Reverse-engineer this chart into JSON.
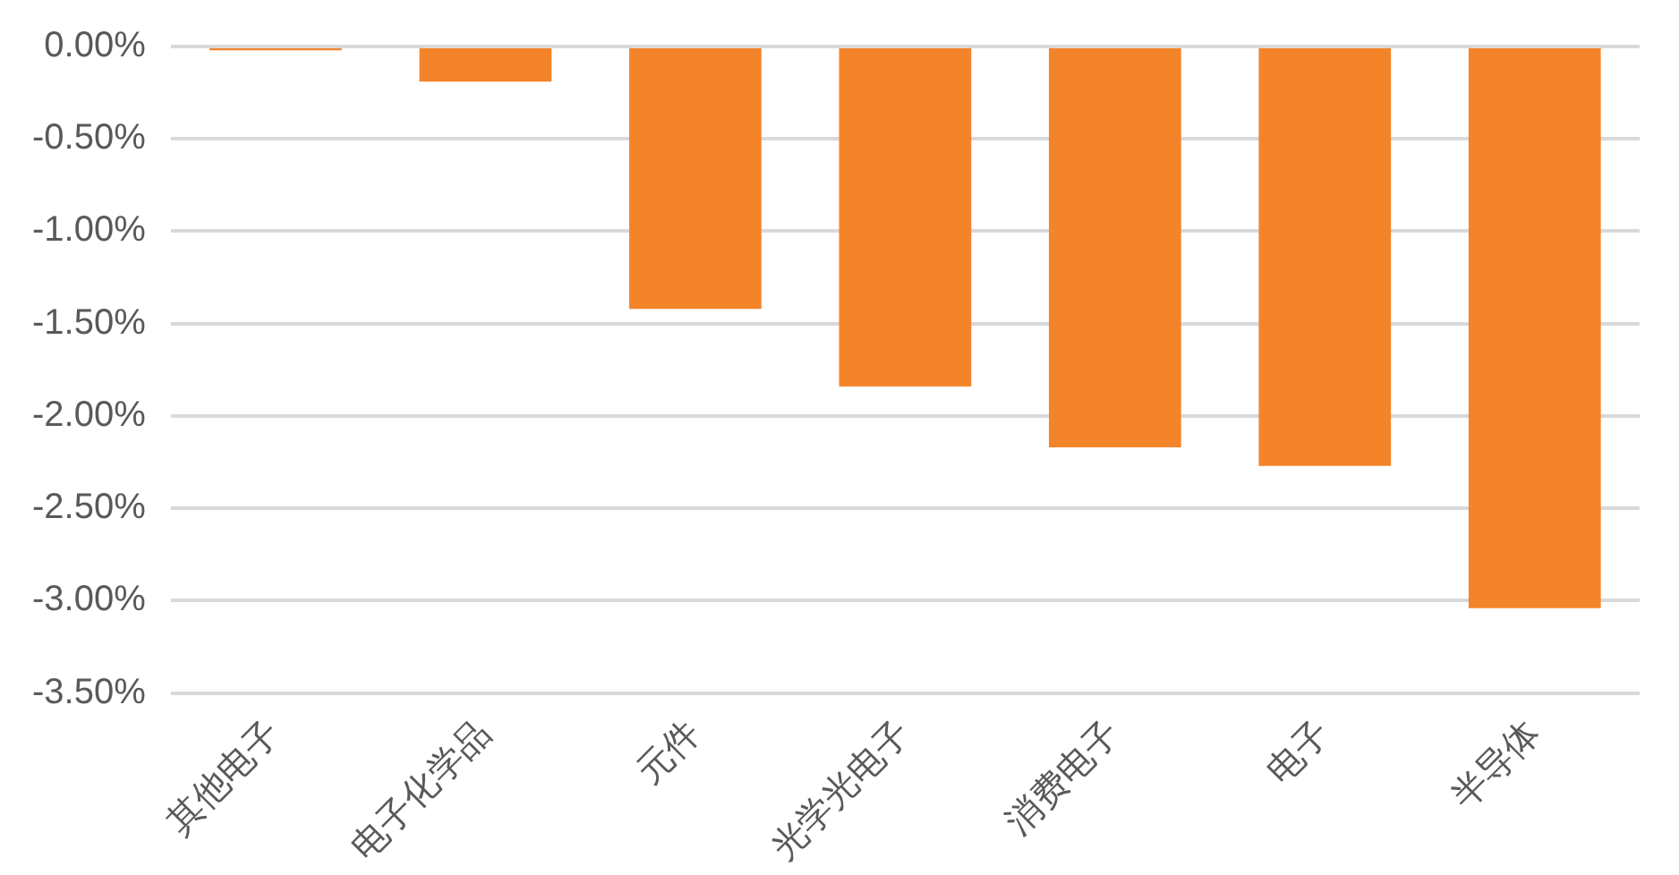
{
  "chart_data": {
    "type": "bar",
    "categories": [
      "其他电子",
      "电子化学品",
      "元件",
      "光学光电子",
      "消费电子",
      "电子",
      "半导体"
    ],
    "values": [
      -0.02,
      -0.19,
      -1.42,
      -1.84,
      -2.17,
      -2.27,
      -3.04
    ],
    "color": "#f4842a",
    "ylim": [
      -3.5,
      0
    ],
    "yticks": [
      {
        "value": 0,
        "label": "0.00%"
      },
      {
        "value": -0.5,
        "label": "-0.50%"
      },
      {
        "value": -1,
        "label": "-1.00%"
      },
      {
        "value": -1.5,
        "label": "-1.50%"
      },
      {
        "value": -2,
        "label": "-2.00%"
      },
      {
        "value": -2.5,
        "label": "-2.50%"
      },
      {
        "value": -3,
        "label": "-3.00%"
      },
      {
        "value": -3.5,
        "label": "-3.50%"
      }
    ],
    "grid": "y",
    "legend": false
  }
}
